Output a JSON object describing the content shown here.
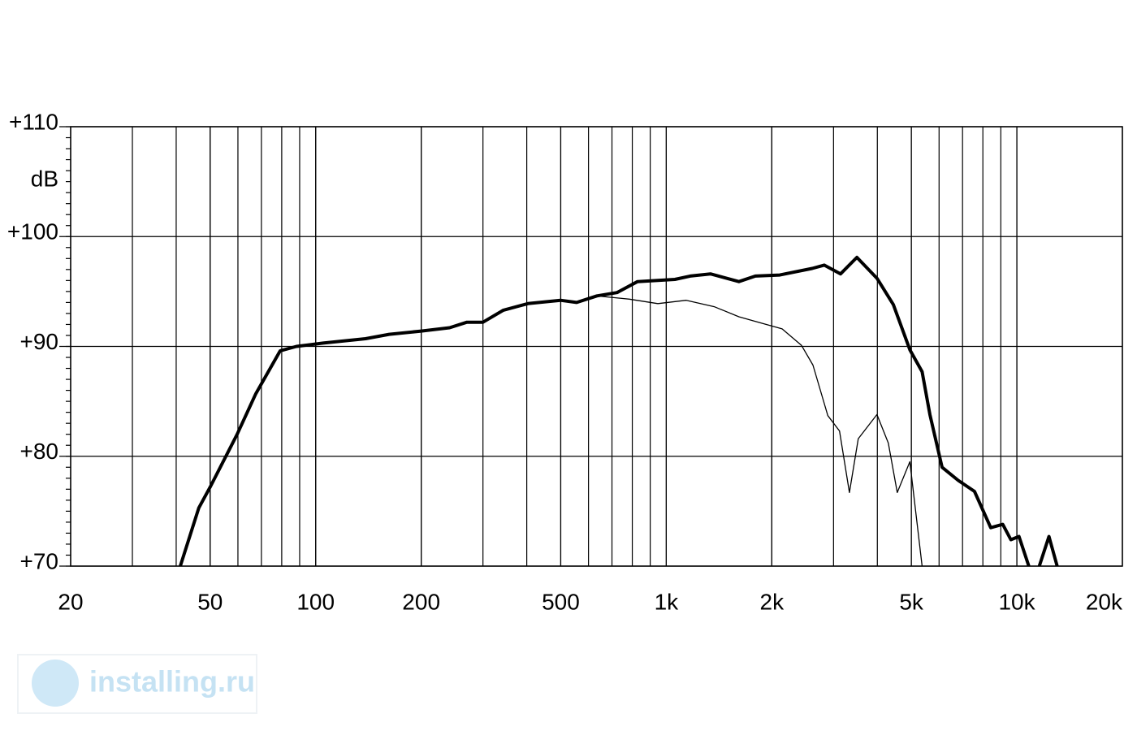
{
  "chart_data": {
    "type": "line",
    "y_label": "dB",
    "x_scale": "log",
    "xlim": [
      20,
      20000
    ],
    "ylim": [
      70,
      110
    ],
    "xticks": [
      20,
      50,
      100,
      200,
      500,
      {
        "value": 1000,
        "label": "1k"
      },
      {
        "value": 2000,
        "label": "2k"
      },
      {
        "value": 5000,
        "label": "5k"
      },
      {
        "value": 10000,
        "label": "10k"
      },
      {
        "value": 20000,
        "label": "20k"
      }
    ],
    "yticks": [
      {
        "value": 70,
        "label": "+70"
      },
      {
        "value": 80,
        "label": "+80"
      },
      {
        "value": 90,
        "label": "+90"
      },
      {
        "value": 100,
        "label": "+100"
      },
      {
        "value": 110,
        "label": "+110"
      }
    ],
    "grid": true,
    "minor_grid": true,
    "series": [
      {
        "color": "#000000",
        "width": 4,
        "x": [
          41.1,
          46.4,
          50,
          59.7,
          67.5,
          79.2,
          88.1,
          105,
          138.7,
          162,
          200,
          241,
          270,
          300,
          343,
          403,
          499,
          555,
          634,
          724,
          828,
          946,
          1058,
          1170,
          1337,
          1611,
          1795,
          2107,
          2607,
          2823,
          3142,
          3497,
          3990,
          4444,
          4953,
          5368,
          5650,
          6119,
          6804,
          7570,
          8424,
          9118,
          9614,
          10140,
          10820,
          11200,
          11590,
          12350,
          13030
        ],
        "values": [
          70,
          75.3,
          77.2,
          82.0,
          85.7,
          89.6,
          90.0,
          90.3,
          90.7,
          91.1,
          91.4,
          91.7,
          92.2,
          92.2,
          93.3,
          93.9,
          94.2,
          94.0,
          94.6,
          94.9,
          95.9,
          96.0,
          96.1,
          96.4,
          96.6,
          95.9,
          96.4,
          96.5,
          97.1,
          97.4,
          96.6,
          98.1,
          96.2,
          93.8,
          89.7,
          87.7,
          83.8,
          79.0,
          77.8,
          76.8,
          73.5,
          73.8,
          72.4,
          72.7,
          70,
          null,
          70,
          72.7,
          70
        ]
      },
      {
        "color": "#000000",
        "width": 1.3,
        "x": [
          634,
          785,
          946,
          1140,
          1374,
          1611,
          1880,
          2140,
          2430,
          2620,
          2890,
          3120,
          3330,
          3530,
          3990,
          4300,
          4560,
          4953,
          5368
        ],
        "values": [
          94.6,
          94.3,
          93.9,
          94.2,
          93.6,
          92.7,
          92.1,
          91.6,
          90.1,
          88.3,
          83.7,
          82.3,
          76.7,
          81.6,
          83.8,
          81.2,
          76.7,
          79.5,
          70
        ]
      }
    ]
  },
  "watermark": {
    "text": "installing.ru"
  }
}
